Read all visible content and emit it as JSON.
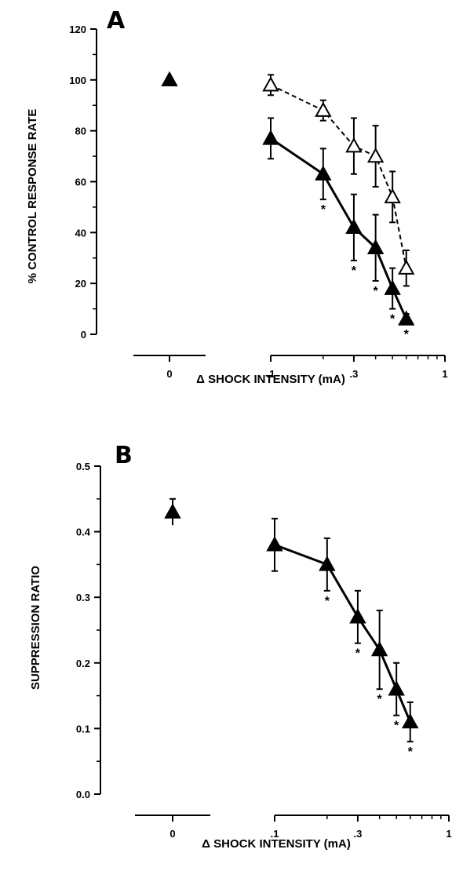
{
  "chart_data": [
    {
      "panel_label": "A",
      "type": "line",
      "xlabel": "Δ SHOCK INTENSITY (mA)",
      "ylabel": "% CONTROL RESPONSE RATE",
      "xscale": "log",
      "xticks": [
        "0",
        ".1",
        ".3",
        "1"
      ],
      "yticks": [
        "0",
        "20",
        "40",
        "60",
        "80",
        "100",
        "120"
      ],
      "ylim": [
        0,
        120
      ],
      "control": {
        "x_label": "0",
        "y": 100,
        "marker": "filled-triangle"
      },
      "series": [
        {
          "marker": "filled-triangle",
          "line": "solid",
          "x": [
            0.1,
            0.2,
            0.3,
            0.4,
            0.5,
            0.6
          ],
          "y": [
            77,
            63,
            42,
            34,
            18,
            6
          ],
          "err": [
            8,
            10,
            13,
            13,
            8,
            2
          ],
          "significant": [
            false,
            true,
            true,
            true,
            true,
            true
          ]
        },
        {
          "marker": "open-triangle",
          "line": "dashed",
          "x": [
            0.1,
            0.2,
            0.3,
            0.4,
            0.5,
            0.6
          ],
          "y": [
            98,
            88,
            74,
            70,
            54,
            26
          ],
          "err": [
            4,
            4,
            11,
            12,
            10,
            7
          ]
        }
      ],
      "annotation": "*"
    },
    {
      "panel_label": "B",
      "type": "line",
      "xlabel": "Δ SHOCK INTENSITY (mA)",
      "ylabel": "SUPPRESSION RATIO",
      "xscale": "log",
      "xticks": [
        "0",
        ".1",
        ".3",
        "1"
      ],
      "yticks": [
        "0.0",
        "0.1",
        "0.2",
        "0.3",
        "0.4",
        "0.5"
      ],
      "ylim": [
        0,
        0.5
      ],
      "control": {
        "x_label": "0",
        "y": 0.43,
        "err": 0.02,
        "marker": "filled-triangle"
      },
      "series": [
        {
          "marker": "filled-triangle",
          "line": "solid",
          "x": [
            0.1,
            0.2,
            0.3,
            0.4,
            0.5,
            0.6
          ],
          "y": [
            0.38,
            0.35,
            0.27,
            0.22,
            0.16,
            0.11
          ],
          "err": [
            0.04,
            0.04,
            0.04,
            0.06,
            0.04,
            0.03
          ],
          "significant": [
            false,
            true,
            true,
            true,
            true,
            true
          ]
        }
      ],
      "annotation": "*"
    }
  ]
}
